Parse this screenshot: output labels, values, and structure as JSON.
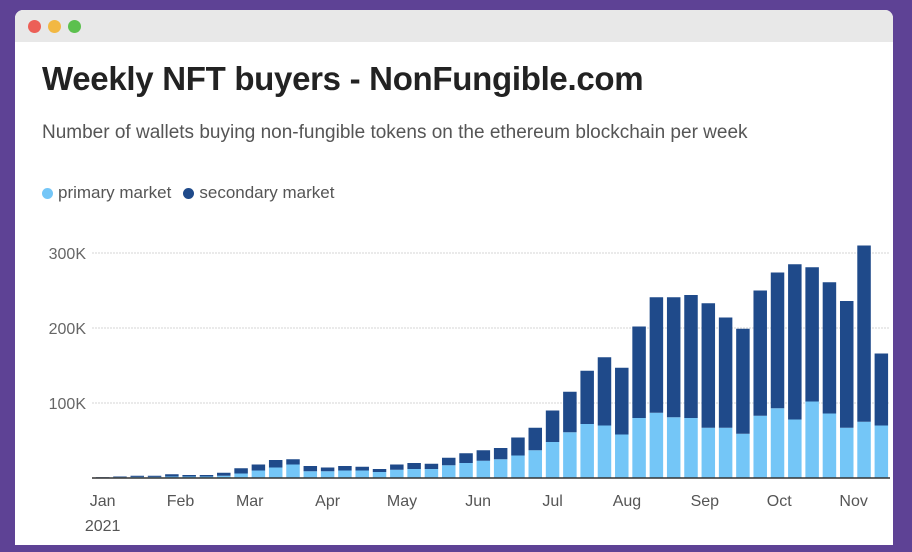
{
  "window": {
    "controls": [
      "close",
      "minimize",
      "maximize"
    ],
    "control_colors": [
      "#ec5f57",
      "#f2b843",
      "#5cc04e"
    ]
  },
  "chart_data": {
    "type": "bar",
    "stacked": true,
    "title": "Weekly NFT buyers - NonFungible.com",
    "subtitle": "Number of wallets buying non-fungible tokens on the ethereum blockchain per week",
    "legend_placement": "top-left",
    "series": [
      {
        "name": "primary market",
        "color": "#74c6f7",
        "values": [
          0.5,
          1,
          1.5,
          1.5,
          2,
          2,
          2,
          3,
          6,
          10,
          14,
          18,
          9,
          9,
          10,
          10,
          8,
          11,
          12,
          12,
          17,
          20,
          23,
          25,
          30,
          37,
          48,
          61,
          72,
          70,
          58,
          80,
          87,
          81,
          80,
          67,
          67,
          59,
          83,
          93,
          78,
          102,
          86,
          67,
          75,
          70
        ]
      },
      {
        "name": "secondary market",
        "color": "#1f4a8a",
        "values": [
          0.5,
          1,
          1.5,
          1.5,
          3,
          2,
          2,
          4,
          7,
          8,
          10,
          7,
          7,
          5,
          6,
          5,
          4,
          7,
          8,
          7,
          10,
          13,
          14,
          15,
          24,
          30,
          42,
          54,
          71,
          91,
          89,
          122,
          154,
          160,
          164,
          166,
          147,
          140,
          167,
          181,
          207,
          179,
          175,
          169,
          235,
          96
        ]
      }
    ],
    "x_ticks": [
      {
        "label": "Jan",
        "week": 1
      },
      {
        "label": "Feb",
        "week": 5.5
      },
      {
        "label": "Mar",
        "week": 9.5
      },
      {
        "label": "Apr",
        "week": 14
      },
      {
        "label": "May",
        "week": 18.3
      },
      {
        "label": "Jun",
        "week": 22.7
      },
      {
        "label": "Jul",
        "week": 27
      },
      {
        "label": "Aug",
        "week": 31.3
      },
      {
        "label": "Sep",
        "week": 35.8
      },
      {
        "label": "Oct",
        "week": 40.1
      },
      {
        "label": "Nov",
        "week": 44.4
      }
    ],
    "x_year_label": "2021",
    "y_ticks": [
      {
        "label": "100K",
        "value": 100
      },
      {
        "label": "200K",
        "value": 200
      },
      {
        "label": "300K",
        "value": 300
      }
    ],
    "ylim": [
      0,
      320
    ],
    "y_units": "thousands of wallets",
    "grid": true
  }
}
